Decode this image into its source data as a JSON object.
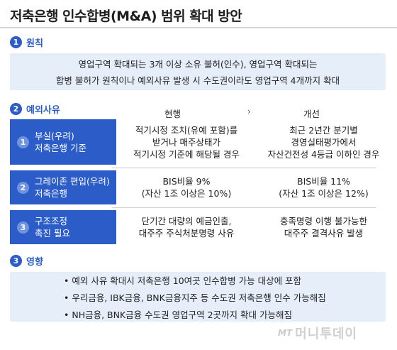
{
  "title": "저축은행 인수합병(M&A) 범위 확대 방안",
  "section1": {
    "num": "1",
    "label": "원칙",
    "lines": [
      "영업구역 확대되는 3개 이상 소유 불허(인수), 영업구역 확대되는",
      "합병 불허가 원칙이나 예외사유 발생 시 수도권이라도 영업구역 4개까지 확대"
    ]
  },
  "section2": {
    "num": "2",
    "label": "예외사유",
    "col_current": "현행",
    "col_arrow": "›",
    "col_change": "개선",
    "rows": [
      {
        "num": "1",
        "label": [
          "부실(우려)",
          "저축은행 기준"
        ],
        "current": [
          "적기시정 조치(유예 포함)를",
          "받거나 매주상태가",
          "적기시정 기준에 해당될 경우"
        ],
        "change": [
          "최근 2년간 분기별",
          "경영실태평가에서",
          "자산건전성 4등급 이하인 경우"
        ]
      },
      {
        "num": "2",
        "label": [
          "그레이존 편입(우려)",
          "저축은행"
        ],
        "current": [
          "BIS비율 9%",
          "(자산 1조 이상은 10%)"
        ],
        "change": [
          "BIS비율 11%",
          "(자산 1조 이상은 12%)"
        ]
      },
      {
        "num": "3",
        "label": [
          "구조조정",
          "촉진 필요"
        ],
        "current": [
          "단기간 대량의 예금인출,",
          "대주주 주식처분명령 사유"
        ],
        "change": [
          "충족명령 이행 불가능한",
          "대주주 결격사유 발생"
        ]
      }
    ]
  },
  "section3": {
    "num": "3",
    "label": "영향",
    "items": [
      "• 예외 사유 확대시 저축은행 10여곳 인수합병 가능 대상에 포함",
      "• 우리금융, IBK금융, BNK금융지주 등 수도권 저축은행 인수 가능해짐",
      "• NH금융, BNK금융 수도권 영업구역 2곳까지 확대 가능해짐"
    ]
  },
  "logo": {
    "mark": "MT",
    "text": "머니투데이"
  },
  "colors": {
    "accent": "#2b5cc8",
    "panel": "#e6eef9",
    "row_num": "#6f93e0"
  }
}
